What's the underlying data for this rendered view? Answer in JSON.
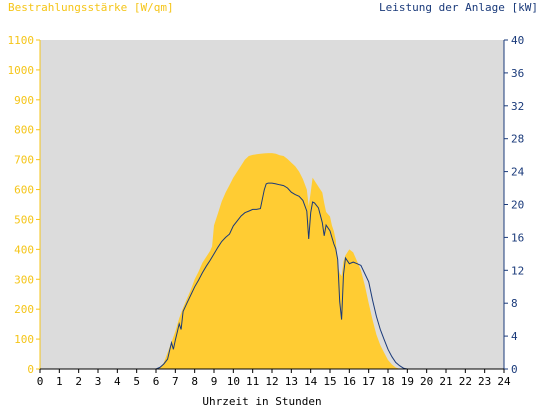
{
  "chart_data": {
    "type": "area",
    "left_axis_label": "Bestrahlungsstärke [W/qm]",
    "right_axis_label": "Leistung der Anlage [kW]",
    "xlabel": "Uhrzeit in Stunden",
    "xlim": [
      0,
      24
    ],
    "x_ticks": [
      "0",
      "1",
      "2",
      "3",
      "4",
      "5",
      "6",
      "7",
      "8",
      "9",
      "10",
      "11",
      "12",
      "13",
      "14",
      "15",
      "16",
      "17",
      "18",
      "19",
      "20",
      "21",
      "22",
      "23",
      "24"
    ],
    "y_left_lim": [
      0,
      1100
    ],
    "y_left_ticks": [
      "0",
      "100",
      "200",
      "300",
      "400",
      "500",
      "600",
      "700",
      "800",
      "900",
      "1000",
      "1100"
    ],
    "y_right_lim": [
      0,
      40
    ],
    "y_right_ticks": [
      "0",
      "4",
      "8",
      "12",
      "16",
      "20",
      "24",
      "28",
      "32",
      "36",
      "40"
    ],
    "grid": false,
    "colors": {
      "plot_bg": "#dcdcdc",
      "irradiance": "#ffcc33",
      "power": "#1a3a7a",
      "left_axis": "#f5c518",
      "right_axis": "#1a3a7a"
    },
    "series": [
      {
        "axis": "left",
        "x": [
          0,
          6,
          6.2,
          6.4,
          6.6,
          6.8,
          7,
          7.2,
          7.4,
          7.6,
          7.8,
          8,
          8.2,
          8.4,
          8.6,
          8.8,
          8.9,
          9,
          9.2,
          9.4,
          9.6,
          9.8,
          10,
          10.2,
          10.4,
          10.6,
          10.8,
          11,
          11.2,
          11.4,
          11.6,
          11.8,
          12,
          12.2,
          12.4,
          12.6,
          12.8,
          13,
          13.2,
          13.4,
          13.6,
          13.8,
          13.9,
          14,
          14.1,
          14.2,
          14.4,
          14.6,
          14.7,
          14.8,
          15,
          15.1,
          15.2,
          15.3,
          15.4,
          15.5,
          15.6,
          15.7,
          15.8,
          16,
          16.2,
          16.4,
          16.6,
          16.8,
          17,
          17.2,
          17.4,
          17.6,
          17.8,
          18,
          18.2,
          18.4,
          18.6,
          18.8,
          19,
          19.2,
          24
        ],
        "values": [
          0,
          0,
          5,
          20,
          55,
          90,
          125,
          170,
          205,
          235,
          265,
          300,
          325,
          355,
          375,
          395,
          410,
          480,
          520,
          560,
          590,
          615,
          640,
          660,
          680,
          700,
          712,
          716,
          718,
          720,
          721,
          722,
          722,
          720,
          715,
          712,
          702,
          690,
          678,
          660,
          635,
          600,
          545,
          590,
          640,
          630,
          610,
          590,
          555,
          525,
          510,
          480,
          460,
          430,
          345,
          320,
          310,
          360,
          380,
          400,
          390,
          360,
          330,
          280,
          220,
          165,
          115,
          80,
          55,
          30,
          15,
          5,
          1,
          0,
          0,
          0,
          0
        ]
      },
      {
        "axis": "right",
        "x": [
          0,
          6,
          6.2,
          6.4,
          6.6,
          6.7,
          6.8,
          6.9,
          7,
          7.1,
          7.2,
          7.3,
          7.4,
          7.6,
          7.8,
          8,
          8.2,
          8.4,
          8.6,
          8.8,
          9,
          9.2,
          9.4,
          9.6,
          9.8,
          10,
          10.2,
          10.4,
          10.6,
          10.8,
          11,
          11.2,
          11.4,
          11.6,
          11.7,
          11.8,
          12,
          12.2,
          12.4,
          12.6,
          12.8,
          13,
          13.2,
          13.4,
          13.6,
          13.8,
          13.9,
          14,
          14.1,
          14.2,
          14.4,
          14.6,
          14.7,
          14.8,
          15,
          15.1,
          15.2,
          15.3,
          15.4,
          15.5,
          15.6,
          15.7,
          15.8,
          16,
          16.2,
          16.4,
          16.6,
          16.8,
          17,
          17.2,
          17.4,
          17.6,
          17.8,
          18,
          18.2,
          18.4,
          18.6,
          18.8,
          19,
          19.2,
          24
        ],
        "values": [
          0,
          0,
          0.2,
          0.6,
          1.2,
          2.2,
          3.2,
          2.4,
          3.5,
          4.5,
          5.5,
          4.8,
          7,
          8,
          9,
          10,
          10.8,
          11.7,
          12.5,
          13.2,
          14,
          14.8,
          15.5,
          16,
          16.4,
          17.4,
          18,
          18.6,
          19,
          19.2,
          19.4,
          19.4,
          19.5,
          21.8,
          22.5,
          22.6,
          22.6,
          22.5,
          22.4,
          22.3,
          22,
          21.5,
          21.2,
          21,
          20.5,
          19.2,
          15.8,
          19,
          20.3,
          20.2,
          19.6,
          17.8,
          16.2,
          17.5,
          16.8,
          16,
          15.2,
          14.6,
          13.3,
          8.2,
          6,
          11.5,
          13.5,
          12.8,
          13,
          12.8,
          12.6,
          11.6,
          10.6,
          8.4,
          6.4,
          4.8,
          3.6,
          2.4,
          1.5,
          0.8,
          0.4,
          0.1,
          0,
          0,
          0
        ]
      }
    ]
  }
}
